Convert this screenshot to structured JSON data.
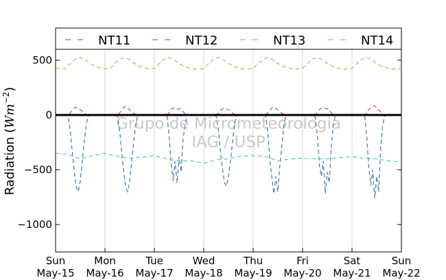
{
  "chart_data": {
    "type": "line",
    "ylabel": "Radiation (Wm^-2)",
    "ylim": [
      -1250,
      600
    ],
    "yticks": [
      500,
      0,
      -500,
      -1000
    ],
    "ytick_labels": [
      "500",
      "0",
      "−500",
      "−1000"
    ],
    "xlim": [
      0,
      7
    ],
    "xticks": [
      {
        "x": 0,
        "day": "Sun",
        "date": "May-15"
      },
      {
        "x": 1,
        "day": "Mon",
        "date": "May-16"
      },
      {
        "x": 2,
        "day": "Tue",
        "date": "May-17"
      },
      {
        "x": 3,
        "day": "Wed",
        "date": "May-18"
      },
      {
        "x": 4,
        "day": "Thu",
        "date": "May-19"
      },
      {
        "x": 5,
        "day": "Fri",
        "date": "May-20"
      },
      {
        "x": 6,
        "day": "Sat",
        "date": "May-21"
      },
      {
        "x": 7,
        "day": "Sun",
        "date": "May-22"
      }
    ],
    "grid_x": true,
    "legend": "top",
    "watermark": [
      "Grupo de Micrometeorologia",
      "IAG / USP"
    ],
    "series": [
      {
        "name": "NT11",
        "color": "#4682b4",
        "peaks": [
          -700,
          -700,
          -620,
          -650,
          -720,
          -720,
          -760
        ],
        "x": [
          0.02,
          0.08,
          0.16,
          0.22,
          0.26,
          0.3,
          0.34,
          0.38,
          0.42,
          0.46,
          0.5,
          0.54,
          0.58,
          0.62,
          0.66,
          0.7,
          0.74,
          0.78,
          0.84,
          0.92,
          1.02,
          1.08,
          1.16,
          1.22,
          1.26,
          1.3,
          1.34,
          1.38,
          1.42,
          1.46,
          1.5,
          1.54,
          1.58,
          1.62,
          1.66,
          1.7,
          1.74,
          1.78,
          1.84,
          1.92,
          2.02,
          2.08,
          2.16,
          2.22,
          2.26,
          2.3,
          2.34,
          2.38,
          2.42,
          2.46,
          2.5,
          2.54,
          2.58,
          2.62,
          2.66,
          2.7,
          2.74,
          2.78,
          2.84,
          2.92,
          3.02,
          3.08,
          3.16,
          3.22,
          3.26,
          3.3,
          3.34,
          3.38,
          3.42,
          3.46,
          3.5,
          3.54,
          3.58,
          3.62,
          3.66,
          3.7,
          3.74,
          3.78,
          3.84,
          3.92,
          4.02,
          4.08,
          4.16,
          4.22,
          4.26,
          4.3,
          4.34,
          4.38,
          4.42,
          4.46,
          4.5,
          4.54,
          4.58,
          4.62,
          4.66,
          4.7,
          4.74,
          4.78,
          4.84,
          4.92,
          5.02,
          5.08,
          5.16,
          5.22,
          5.26,
          5.3,
          5.34,
          5.38,
          5.42,
          5.46,
          5.5,
          5.54,
          5.58,
          5.62,
          5.66,
          5.7,
          5.74,
          5.78,
          5.84,
          5.92,
          6.02,
          6.08,
          6.16,
          6.22,
          6.26,
          6.3,
          6.34,
          6.38,
          6.42,
          6.46,
          6.5,
          6.54,
          6.58,
          6.62,
          6.66,
          6.7,
          6.74,
          6.78,
          6.84,
          6.92,
          6.98
        ],
        "y": [
          0,
          0,
          0,
          0,
          -20,
          -150,
          -350,
          -520,
          -660,
          -700,
          -600,
          -420,
          -250,
          -90,
          -10,
          0,
          0,
          0,
          0,
          0,
          0,
          0,
          0,
          0,
          -20,
          -150,
          -350,
          -520,
          -660,
          -700,
          -600,
          -420,
          -250,
          -90,
          -10,
          0,
          0,
          0,
          0,
          0,
          0,
          0,
          0,
          0,
          -20,
          -200,
          -450,
          -600,
          -420,
          -620,
          -380,
          -520,
          -220,
          -100,
          -10,
          0,
          0,
          0,
          0,
          0,
          0,
          0,
          0,
          0,
          -20,
          -150,
          -350,
          -500,
          -620,
          -650,
          -560,
          -420,
          -250,
          -90,
          -10,
          0,
          0,
          0,
          0,
          0,
          0,
          0,
          0,
          0,
          -20,
          -180,
          -420,
          -580,
          -720,
          -560,
          -700,
          -460,
          -280,
          -100,
          -10,
          0,
          0,
          0,
          0,
          0,
          0,
          0,
          0,
          0,
          -20,
          -200,
          -460,
          -560,
          -420,
          -720,
          -520,
          -620,
          -280,
          -100,
          -10,
          0,
          0,
          0,
          0,
          0,
          0,
          0,
          0,
          0,
          -20,
          -200,
          -480,
          -640,
          -500,
          -760,
          -560,
          -700,
          -300,
          -100,
          -10,
          0,
          0,
          0,
          0,
          0,
          0
        ]
      },
      {
        "name": "NT12",
        "color": "#cd5c5c",
        "x": [
          0.0,
          0.1,
          0.2,
          0.28,
          0.34,
          0.4,
          0.46,
          0.52,
          0.58,
          0.64,
          0.7,
          0.8,
          0.9,
          1.0,
          1.1,
          1.2,
          1.28,
          1.34,
          1.4,
          1.46,
          1.52,
          1.58,
          1.64,
          1.7,
          1.8,
          1.9,
          2.0,
          2.1,
          2.2,
          2.28,
          2.34,
          2.4,
          2.46,
          2.52,
          2.58,
          2.64,
          2.7,
          2.8,
          2.9,
          3.0,
          3.1,
          3.2,
          3.28,
          3.34,
          3.4,
          3.46,
          3.52,
          3.58,
          3.64,
          3.7,
          3.8,
          3.9,
          4.0,
          4.1,
          4.2,
          4.28,
          4.34,
          4.4,
          4.46,
          4.52,
          4.58,
          4.64,
          4.7,
          4.8,
          4.9,
          5.0,
          5.1,
          5.2,
          5.28,
          5.34,
          5.4,
          5.46,
          5.52,
          5.58,
          5.64,
          5.7,
          5.8,
          5.9,
          6.0,
          6.1,
          6.2,
          6.28,
          6.34,
          6.4,
          6.46,
          6.52,
          6.58,
          6.64,
          6.7,
          6.8,
          6.98
        ],
        "y": [
          0,
          0,
          0,
          10,
          45,
          70,
          60,
          40,
          15,
          0,
          0,
          0,
          0,
          0,
          0,
          0,
          10,
          45,
          80,
          60,
          40,
          15,
          0,
          0,
          0,
          0,
          0,
          0,
          0,
          10,
          55,
          65,
          50,
          60,
          30,
          5,
          0,
          0,
          0,
          0,
          0,
          0,
          10,
          40,
          65,
          55,
          45,
          20,
          0,
          0,
          0,
          0,
          0,
          0,
          0,
          10,
          45,
          75,
          60,
          40,
          15,
          0,
          0,
          0,
          0,
          0,
          0,
          0,
          10,
          50,
          70,
          60,
          55,
          20,
          0,
          0,
          0,
          0,
          0,
          0,
          0,
          10,
          50,
          70,
          85,
          55,
          30,
          0,
          0,
          0,
          0
        ]
      },
      {
        "name": "NT13",
        "color": "#66cdaa",
        "x": [
          0.0,
          0.25,
          0.5,
          0.75,
          1.0,
          1.25,
          1.5,
          1.75,
          2.0,
          2.25,
          2.5,
          2.75,
          3.0,
          3.25,
          3.5,
          3.75,
          4.0,
          4.25,
          4.5,
          4.75,
          5.0,
          5.25,
          5.5,
          5.75,
          6.0,
          6.25,
          6.5,
          6.75,
          6.98
        ],
        "y": [
          -350,
          -360,
          -400,
          -370,
          -350,
          -375,
          -395,
          -385,
          -370,
          -400,
          -420,
          -420,
          -440,
          -410,
          -400,
          -375,
          -370,
          -380,
          -420,
          -400,
          -395,
          -400,
          -400,
          -390,
          -380,
          -395,
          -400,
          -420,
          -425
        ]
      },
      {
        "name": "NT14",
        "color": "#bdb76b",
        "x": [
          0.0,
          0.1,
          0.2,
          0.3,
          0.4,
          0.5,
          0.6,
          0.7,
          0.8,
          0.9,
          1.0,
          1.1,
          1.2,
          1.3,
          1.4,
          1.5,
          1.6,
          1.7,
          1.8,
          1.9,
          2.0,
          2.1,
          2.2,
          2.3,
          2.4,
          2.5,
          2.6,
          2.7,
          2.8,
          2.9,
          3.0,
          3.1,
          3.2,
          3.3,
          3.4,
          3.5,
          3.6,
          3.7,
          3.8,
          3.9,
          4.0,
          4.1,
          4.2,
          4.3,
          4.4,
          4.5,
          4.6,
          4.7,
          4.8,
          4.9,
          5.0,
          5.1,
          5.2,
          5.3,
          5.4,
          5.5,
          5.6,
          5.7,
          5.8,
          5.9,
          6.0,
          6.1,
          6.2,
          6.3,
          6.4,
          6.5,
          6.6,
          6.7,
          6.8,
          6.9,
          6.98
        ],
        "y": [
          430,
          420,
          425,
          470,
          510,
          525,
          505,
          470,
          445,
          430,
          420,
          425,
          470,
          510,
          525,
          505,
          470,
          445,
          430,
          420,
          425,
          470,
          510,
          525,
          505,
          470,
          445,
          430,
          420,
          420,
          425,
          470,
          510,
          525,
          505,
          470,
          445,
          430,
          420,
          420,
          425,
          470,
          510,
          525,
          505,
          470,
          445,
          430,
          420,
          420,
          425,
          470,
          510,
          525,
          505,
          470,
          445,
          430,
          420,
          420,
          425,
          470,
          510,
          525,
          505,
          470,
          445,
          430,
          420,
          420,
          425
        ]
      }
    ]
  }
}
